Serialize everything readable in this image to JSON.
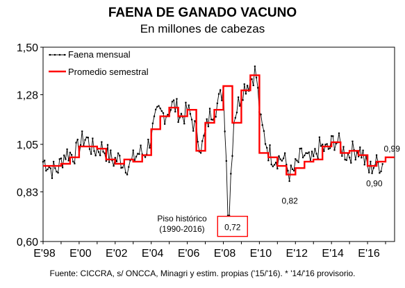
{
  "chart_data": {
    "type": "line",
    "title": "FAENA DE GANADO VACUNO",
    "subtitle": "En millones de cabezas",
    "xlabel": "",
    "ylabel": "",
    "ylim": [
      0.6,
      1.5
    ],
    "yticks": [
      "0,60",
      "0,83",
      "1,05",
      "1,28",
      "1,50"
    ],
    "ytick_values": [
      0.6,
      0.83,
      1.05,
      1.28,
      1.5
    ],
    "xlim": [
      1998,
      2017.5
    ],
    "xticks": [
      "E'98",
      "E'00",
      "E'02",
      "E'04",
      "E'06",
      "E'08",
      "E'10",
      "E'12",
      "E'14",
      "E'16"
    ],
    "xtick_values": [
      1998,
      2000,
      2002,
      2004,
      2006,
      2008,
      2010,
      2012,
      2014,
      2016
    ],
    "legend_position": "top-left",
    "series": [
      {
        "name": "Faena mensual",
        "style": "line-with-markers",
        "color": "#000000",
        "monthly_anchors": [
          [
            1998.0,
            0.97
          ],
          [
            1998.4,
            0.93
          ],
          [
            1998.8,
            0.95
          ],
          [
            1999.2,
            0.99
          ],
          [
            1999.6,
            1.01
          ],
          [
            2000.0,
            1.04
          ],
          [
            2000.4,
            1.07
          ],
          [
            2000.8,
            1.04
          ],
          [
            2001.2,
            1.02
          ],
          [
            2001.6,
            1.01
          ],
          [
            2002.0,
            0.98
          ],
          [
            2002.4,
            0.96
          ],
          [
            2002.8,
            0.97
          ],
          [
            2003.2,
            0.99
          ],
          [
            2003.6,
            1.01
          ],
          [
            2004.0,
            1.1
          ],
          [
            2004.4,
            1.18
          ],
          [
            2004.8,
            1.21
          ],
          [
            2005.2,
            1.22
          ],
          [
            2005.6,
            1.19
          ],
          [
            2006.0,
            1.21
          ],
          [
            2006.4,
            1.12
          ],
          [
            2006.8,
            1.05
          ],
          [
            2007.2,
            1.16
          ],
          [
            2007.6,
            1.23
          ],
          [
            2008.0,
            1.32
          ],
          [
            2008.3,
            0.72
          ],
          [
            2008.6,
            1.19
          ],
          [
            2009.0,
            1.3
          ],
          [
            2009.4,
            1.32
          ],
          [
            2009.8,
            1.41
          ],
          [
            2010.1,
            1.13
          ],
          [
            2010.5,
            1.01
          ],
          [
            2010.9,
            1.0
          ],
          [
            2011.3,
            0.97
          ],
          [
            2011.7,
            0.92
          ],
          [
            2012.1,
            0.96
          ],
          [
            2012.5,
            0.99
          ],
          [
            2012.9,
            0.98
          ],
          [
            2013.3,
            1.02
          ],
          [
            2013.7,
            1.03
          ],
          [
            2014.1,
            1.07
          ],
          [
            2014.5,
            1.03
          ],
          [
            2014.9,
            1.02
          ],
          [
            2015.3,
            1.01
          ],
          [
            2015.7,
            1.02
          ],
          [
            2016.1,
            0.93
          ],
          [
            2016.5,
            0.95
          ],
          [
            2016.9,
            0.98
          ]
        ]
      },
      {
        "name": "Promedio semestral",
        "style": "step",
        "color": "#ff0000",
        "semesters": [
          [
            1998.0,
            0.95
          ],
          [
            1998.5,
            0.95
          ],
          [
            1999.0,
            0.96
          ],
          [
            1999.5,
            0.99
          ],
          [
            2000.0,
            1.04
          ],
          [
            2000.5,
            1.04
          ],
          [
            2001.0,
            1.03
          ],
          [
            2001.5,
            0.98
          ],
          [
            2002.0,
            0.96
          ],
          [
            2002.5,
            0.98
          ],
          [
            2003.0,
            0.97
          ],
          [
            2003.5,
            1.0
          ],
          [
            2004.0,
            1.12
          ],
          [
            2004.5,
            1.18
          ],
          [
            2005.0,
            1.22
          ],
          [
            2005.5,
            1.18
          ],
          [
            2006.0,
            1.21
          ],
          [
            2006.5,
            1.02
          ],
          [
            2007.0,
            1.15
          ],
          [
            2007.5,
            1.21
          ],
          [
            2008.0,
            1.32
          ],
          [
            2008.5,
            1.15
          ],
          [
            2009.0,
            1.3
          ],
          [
            2009.5,
            1.37
          ],
          [
            2010.0,
            1.01
          ],
          [
            2010.5,
            0.99
          ],
          [
            2011.0,
            0.95
          ],
          [
            2011.5,
            0.91
          ],
          [
            2012.0,
            0.94
          ],
          [
            2012.5,
            0.97
          ],
          [
            2013.0,
            0.98
          ],
          [
            2013.5,
            1.04
          ],
          [
            2014.0,
            1.06
          ],
          [
            2014.5,
            1.01
          ],
          [
            2015.0,
            1.02
          ],
          [
            2015.5,
            1.0
          ],
          [
            2016.0,
            0.95
          ],
          [
            2016.5,
            0.97
          ],
          [
            2017.0,
            0.99
          ]
        ]
      }
    ],
    "annotations": [
      {
        "text": "Piso histórico",
        "x": 2008.3,
        "y": 0.72
      },
      {
        "text": "(1990-2016)",
        "x": 2008.3,
        "y": 0.72
      },
      {
        "text": "0,72",
        "x": 2008.3,
        "y": 0.72,
        "boxed": true
      },
      {
        "text": "0,82",
        "x": 2011.3,
        "y": 0.82
      },
      {
        "text": "0,90",
        "x": 2016.3,
        "y": 0.9
      },
      {
        "text": "0,99",
        "x": 2017.2,
        "y": 0.99
      }
    ],
    "colors": {
      "axis": "#000000",
      "monthly": "#000000",
      "semester": "#ff0000",
      "box": "#ff0000"
    }
  },
  "footnote": "Fuente: CICCRA, s/ ONCCA, Minagri y estim. propias ('15/'16). * '14/'16 provisorio."
}
